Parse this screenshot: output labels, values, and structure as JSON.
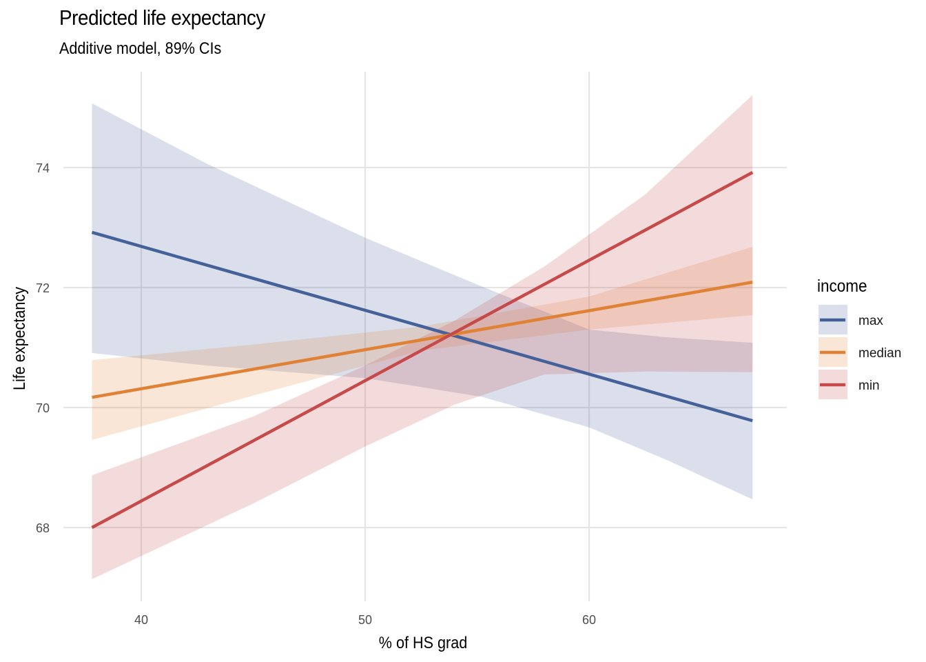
{
  "chart_data": {
    "type": "line",
    "title": "Predicted life expectancy",
    "subtitle": "Additive model, 89% CIs",
    "xlabel": "% of HS grad",
    "ylabel": "Life expectancy",
    "xlim": [
      36.0,
      69.0
    ],
    "ylim": [
      66.8,
      75.5
    ],
    "xticks": [
      40,
      50,
      60
    ],
    "yticks": [
      68,
      70,
      72,
      74
    ],
    "grid": true,
    "legend": {
      "title": "income",
      "position": "right"
    },
    "series": [
      {
        "name": "max",
        "color": "#44619a",
        "fill": "#dbe0ea",
        "x": [
          37.8,
          67.3
        ],
        "y": [
          72.92,
          69.78
        ],
        "ci_x": [
          37.8,
          42.9,
          50.0,
          55.2,
          60.0,
          63.5,
          67.3
        ],
        "ci_upper": [
          75.07,
          74.07,
          72.83,
          72.02,
          71.3,
          71.17,
          71.08
        ],
        "ci_lower": [
          70.91,
          70.7,
          70.49,
          70.18,
          69.67,
          69.12,
          68.47
        ]
      },
      {
        "name": "median",
        "color": "#e08236",
        "fill": "#f8e6d7",
        "x": [
          37.8,
          67.3
        ],
        "y": [
          70.17,
          72.09
        ],
        "ci_x": [
          37.8,
          45.0,
          52.5,
          60.0,
          67.3
        ],
        "ci_upper": [
          70.79,
          71.05,
          71.35,
          71.85,
          72.68
        ],
        "ci_lower": [
          69.46,
          70.2,
          70.95,
          71.3,
          71.54
        ]
      },
      {
        "name": "min",
        "color": "#c64a4a",
        "fill": "#f2d9db",
        "x": [
          37.8,
          67.3
        ],
        "y": [
          68.0,
          73.92
        ],
        "ci_x": [
          37.8,
          45.0,
          50.0,
          54.0,
          58.0,
          62.5,
          67.3
        ],
        "ci_upper": [
          68.87,
          69.85,
          70.7,
          71.45,
          72.35,
          73.55,
          75.21
        ],
        "ci_lower": [
          67.14,
          68.4,
          69.35,
          70.05,
          70.55,
          70.6,
          70.59
        ]
      }
    ]
  }
}
